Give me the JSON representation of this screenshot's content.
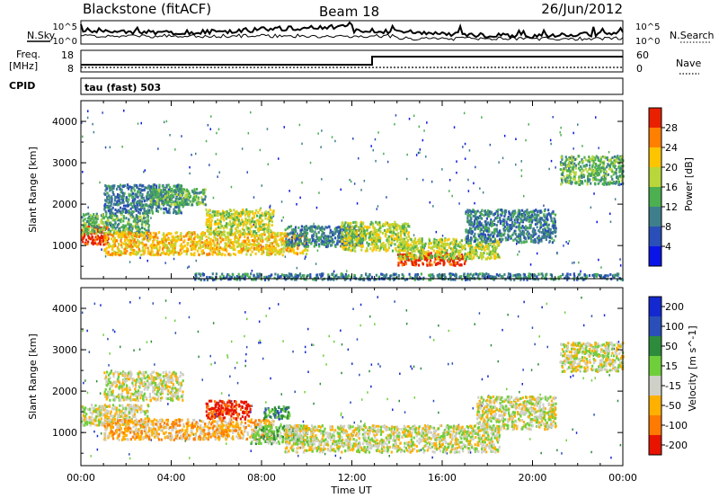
{
  "header": {
    "station": "Blackstone (fitACF)",
    "beam": "Beam 18",
    "date": "26/Jun/2012"
  },
  "summary_panel": {
    "left_label": "N.Sky",
    "left_ticks": [
      "10^5",
      "10^0"
    ],
    "right_label": "N.Search",
    "right_ticks": [
      "10^5",
      "10^0"
    ]
  },
  "freq_panel": {
    "left_label_1": "Freq.",
    "left_label_2": "[MHz]",
    "left_ticks": [
      "18",
      "8"
    ],
    "right_label": "Nave",
    "right_ticks": [
      "60",
      "0"
    ],
    "cpid_label": "CPID",
    "cpid_text": "tau (fast) 503"
  },
  "chart_data": [
    {
      "type": "heatmap",
      "name": "power",
      "ylabel": "Slant Range [km]",
      "ylim": [
        200,
        4500
      ],
      "yticks": [
        "1000",
        "2000",
        "3000",
        "4000"
      ],
      "xlim": [
        0,
        24
      ],
      "colorbar": {
        "label": "Power [dB]",
        "ticks": [
          "4",
          "8",
          "12",
          "16",
          "20",
          "24",
          "28"
        ],
        "colors": [
          "#0a14e6",
          "#2a4fb8",
          "#3f7f8c",
          "#4caf50",
          "#b9d63a",
          "#ffc400",
          "#ff8000",
          "#e82000"
        ]
      },
      "regions": [
        {
          "t0": 0.0,
          "t1": 1.2,
          "r0": 1050,
          "r1": 1500,
          "level": 7
        },
        {
          "t0": 0.0,
          "t1": 3.0,
          "r0": 1300,
          "r1": 1800,
          "level": 3
        },
        {
          "t0": 1.0,
          "t1": 4.5,
          "r0": 1800,
          "r1": 2500,
          "level": 2
        },
        {
          "t0": 1.0,
          "t1": 10.0,
          "r0": 800,
          "r1": 1350,
          "level": 5
        },
        {
          "t0": 3.0,
          "t1": 5.5,
          "r0": 2000,
          "r1": 2400,
          "level": 3
        },
        {
          "t0": 5.5,
          "t1": 8.5,
          "r0": 1300,
          "r1": 1900,
          "level": 4
        },
        {
          "t0": 9.0,
          "t1": 12.5,
          "r0": 1000,
          "r1": 1500,
          "level": 2
        },
        {
          "t0": 11.5,
          "t1": 14.5,
          "r0": 900,
          "r1": 1600,
          "level": 4
        },
        {
          "t0": 14.0,
          "t1": 17.0,
          "r0": 550,
          "r1": 850,
          "level": 7
        },
        {
          "t0": 14.0,
          "t1": 18.5,
          "r0": 700,
          "r1": 1200,
          "level": 4
        },
        {
          "t0": 17.0,
          "t1": 21.0,
          "r0": 1100,
          "r1": 1900,
          "level": 2
        },
        {
          "t0": 21.2,
          "t1": 24.0,
          "r0": 2500,
          "r1": 3200,
          "level": 3
        },
        {
          "t0": 5.0,
          "t1": 24.0,
          "r0": 200,
          "r1": 350,
          "level": 2
        }
      ]
    },
    {
      "type": "heatmap",
      "name": "velocity",
      "ylabel": "Slant Range [km]",
      "ylim": [
        200,
        4500
      ],
      "yticks": [
        "1000",
        "2000",
        "3000",
        "4000"
      ],
      "xlabel": "Time UT",
      "xticks": [
        "00:00",
        "04:00",
        "08:00",
        "12:00",
        "16:00",
        "20:00",
        "00:00"
      ],
      "xlim": [
        0,
        24
      ],
      "colorbar": {
        "label": "Velocity [m s^-1]",
        "ticks": [
          "200",
          "100",
          "50",
          "15",
          "-15",
          "-50",
          "-100",
          "-200"
        ],
        "colors": [
          "#1428d0",
          "#2a4fb8",
          "#2d8c3c",
          "#6fcf3a",
          "#cfd0c8",
          "#ffb000",
          "#ff7a00",
          "#e81400"
        ]
      },
      "regions": [
        {
          "t0": 0.0,
          "t1": 3.0,
          "r0": 1200,
          "r1": 1700,
          "level": 4
        },
        {
          "t0": 1.0,
          "t1": 4.5,
          "r0": 1800,
          "r1": 2500,
          "level": 4
        },
        {
          "t0": 1.0,
          "t1": 8.5,
          "r0": 850,
          "r1": 1350,
          "level": 5
        },
        {
          "t0": 5.5,
          "t1": 7.5,
          "r0": 1350,
          "r1": 1800,
          "level": 7
        },
        {
          "t0": 7.5,
          "t1": 10.0,
          "r0": 750,
          "r1": 1200,
          "level": 3
        },
        {
          "t0": 8.0,
          "t1": 9.2,
          "r0": 1350,
          "r1": 1650,
          "level": 2
        },
        {
          "t0": 9.0,
          "t1": 18.5,
          "r0": 550,
          "r1": 1200,
          "level": 4
        },
        {
          "t0": 17.5,
          "t1": 21.0,
          "r0": 1100,
          "r1": 1900,
          "level": 4
        },
        {
          "t0": 21.2,
          "t1": 24.0,
          "r0": 2500,
          "r1": 3200,
          "level": 4
        }
      ]
    }
  ]
}
